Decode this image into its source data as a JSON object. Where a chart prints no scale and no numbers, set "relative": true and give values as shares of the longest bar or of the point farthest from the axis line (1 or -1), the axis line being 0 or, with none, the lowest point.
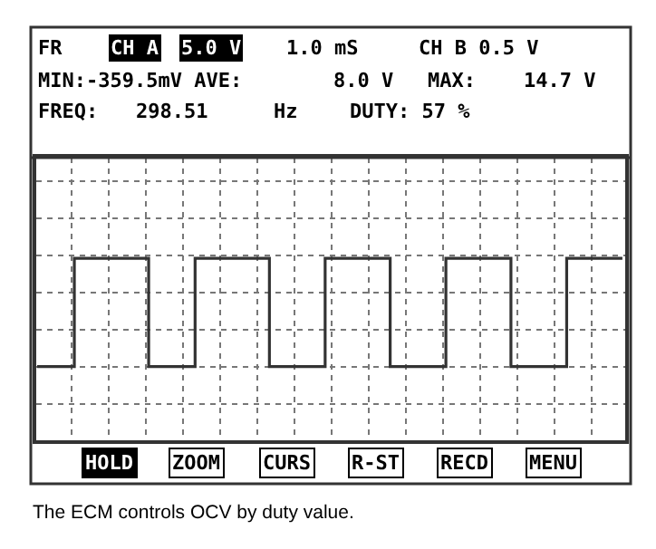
{
  "chart_data": {
    "type": "step",
    "relative": true,
    "grid": true,
    "color": "#333333",
    "categories": [
      null,
      null,
      null,
      null,
      null,
      null,
      null,
      null,
      null,
      null,
      null,
      null,
      null,
      null,
      null,
      null,
      null,
      null,
      null,
      null,
      null,
      null,
      null,
      null,
      null,
      null,
      null,
      null,
      null,
      null,
      null,
      null,
      null,
      null,
      null,
      null,
      null,
      null,
      null,
      null,
      null,
      null,
      null,
      null,
      null,
      null,
      null,
      null,
      null,
      null,
      null,
      null,
      null,
      null,
      null,
      null,
      null,
      null,
      null,
      null,
      null,
      null,
      null,
      null
    ],
    "values": [
      0,
      0,
      0,
      0,
      1,
      1,
      1,
      1,
      1,
      1,
      1,
      1,
      0,
      0,
      0,
      0,
      0,
      1,
      1,
      1,
      1,
      1,
      1,
      1,
      1,
      0,
      0,
      0,
      0,
      0,
      0,
      1,
      1,
      1,
      1,
      1,
      1,
      1,
      0,
      0,
      0,
      0,
      0,
      0,
      1,
      1,
      1,
      1,
      1,
      1,
      1,
      0,
      0,
      0,
      0,
      0,
      0,
      1,
      1,
      1,
      1,
      1,
      1,
      1
    ],
    "annotations": [
      "FR",
      "CH A",
      "5.0 V",
      "1.0 mS",
      "CH B 0.5 V",
      "MIN:-359.5mV AVE:",
      "8.0 V",
      "MAX:",
      "14.7 V",
      "FREQ:",
      "298.51",
      "Hz",
      "DUTY: 57 %",
      "HOLD",
      "ZOOM",
      "CURS",
      "R-ST",
      "RECD",
      "MENU",
      "The ECM controls OCV by duty value."
    ]
  }
}
